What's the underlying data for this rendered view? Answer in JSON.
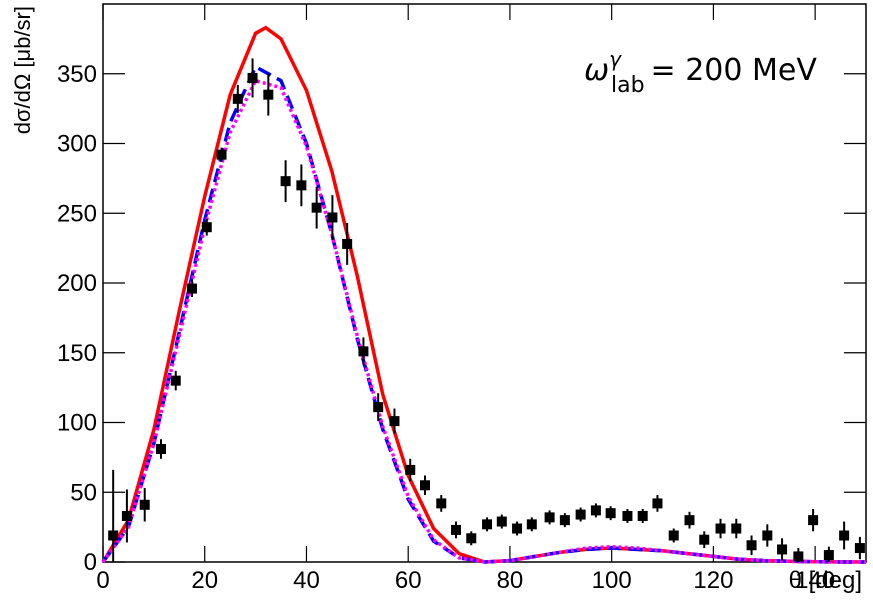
{
  "chart_data": {
    "type": "scatter",
    "annotation": {
      "symbol": "ω",
      "sup": "γ",
      "sub": "lab",
      "text": "= 200 MeV"
    },
    "xlabel": "θ [deg]",
    "ylabel": "dσ/dΩ [μb/sr]",
    "xlim": [
      0,
      150
    ],
    "ylim": [
      0,
      400
    ],
    "xticks": [
      0,
      20,
      40,
      60,
      80,
      100,
      120,
      140
    ],
    "yticks": [
      0,
      50,
      100,
      150,
      200,
      250,
      300,
      350
    ],
    "color": "#000000",
    "x": [
      2,
      4.7,
      8.2,
      11.4,
      14.3,
      17.5,
      20.4,
      23.3,
      26.5,
      29.4,
      32.5,
      35.9,
      39,
      42,
      45.1,
      48,
      51.2,
      54.1,
      57.3,
      60.4,
      63.3,
      66.5,
      69.4,
      72.4,
      75.5,
      78.4,
      81.4,
      84.3,
      87.8,
      90.8,
      93.9,
      96.9,
      99.8,
      103.1,
      106.1,
      109,
      112.2,
      115.3,
      118.2,
      121.4,
      124.5,
      127.5,
      130.6,
      133.5,
      136.7,
      139.6,
      142.7,
      145.7,
      148.8
    ],
    "values": [
      19,
      33,
      41,
      81,
      130,
      196,
      240,
      292,
      332,
      347,
      335,
      273,
      270,
      254,
      247,
      228,
      151,
      111,
      101,
      66,
      55,
      42,
      23,
      17,
      27,
      29,
      24,
      27,
      32,
      30,
      34,
      37,
      35,
      33,
      33,
      42,
      19,
      30,
      16,
      24,
      24,
      12,
      19,
      9,
      4,
      30,
      5,
      19,
      10
    ],
    "errors": [
      47,
      19,
      12,
      7,
      7,
      6,
      6,
      5,
      10,
      14,
      15,
      15,
      15,
      15,
      16,
      15,
      10,
      10,
      9,
      8,
      7,
      6,
      6,
      5,
      5,
      5,
      5,
      5,
      5,
      5,
      5,
      5,
      5,
      5,
      5,
      6,
      5,
      6,
      6,
      7,
      7,
      7,
      8,
      8,
      6,
      8,
      6,
      10,
      8
    ],
    "curves": [
      {
        "color": "#ff0000",
        "style": "solid",
        "x": [
          0,
          5,
          10,
          15,
          20,
          25,
          30,
          32,
          35,
          40,
          45,
          50,
          55,
          60,
          65,
          70,
          75,
          80,
          85,
          90,
          95,
          100,
          105,
          110,
          115,
          120,
          125,
          130,
          135,
          140,
          145,
          150
        ],
        "values": [
          0,
          30,
          95,
          180,
          262,
          335,
          379,
          383,
          375,
          338,
          280,
          205,
          120,
          62,
          24,
          6,
          0,
          1,
          4,
          7,
          9,
          10,
          9,
          8,
          6,
          4,
          2,
          1,
          0.5,
          0.2,
          0.1,
          0
        ]
      },
      {
        "color": "#0000ff",
        "style": "dashed",
        "x": [
          0,
          5,
          10,
          15,
          20,
          25,
          30,
          35,
          40,
          45,
          50,
          55,
          60,
          65,
          70,
          75,
          80,
          85,
          90,
          95,
          100,
          105,
          110,
          115,
          120,
          125,
          130,
          135,
          140,
          145,
          150
        ],
        "values": [
          0,
          25,
          85,
          165,
          245,
          315,
          355,
          345,
          300,
          235,
          160,
          95,
          45,
          15,
          3,
          0,
          1,
          4,
          7,
          9,
          10,
          9,
          8,
          6,
          4,
          2,
          1,
          0.5,
          0.2,
          0,
          0
        ]
      },
      {
        "color": "#ff00ff",
        "style": "dotted",
        "x": [
          0,
          5,
          10,
          15,
          20,
          25,
          30,
          35,
          40,
          45,
          50,
          55,
          60,
          65,
          70,
          75,
          80,
          85,
          90,
          95,
          100,
          105,
          110,
          115,
          120,
          125,
          130,
          135,
          140,
          145,
          150
        ],
        "values": [
          0,
          25,
          85,
          162,
          240,
          308,
          345,
          340,
          298,
          235,
          162,
          97,
          47,
          16,
          3,
          0,
          1,
          4,
          7,
          10,
          11,
          10,
          8,
          6,
          4,
          2,
          1,
          0.5,
          0.2,
          0,
          0
        ]
      }
    ]
  }
}
